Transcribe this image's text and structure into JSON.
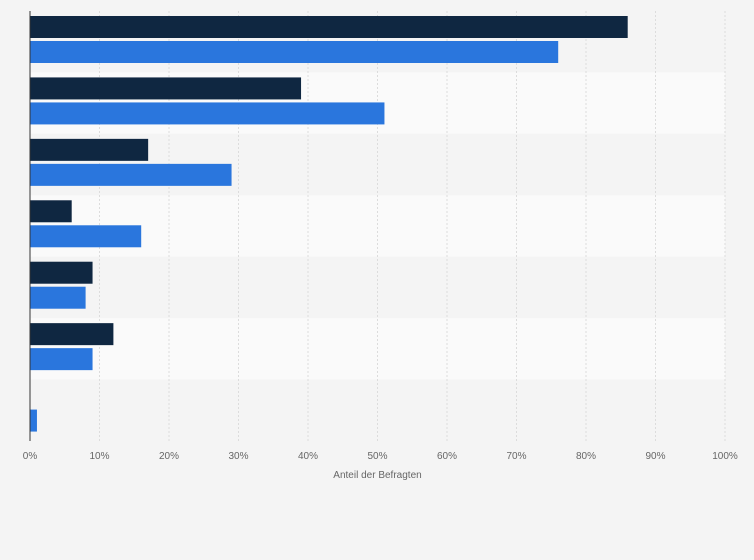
{
  "chart_data": {
    "type": "bar",
    "orientation": "horizontal",
    "xlabel": "Anteil der Befragten",
    "xlim": [
      0,
      100
    ],
    "xticks": [
      "0%",
      "10%",
      "20%",
      "30%",
      "40%",
      "50%",
      "60%",
      "70%",
      "80%",
      "90%",
      "100%"
    ],
    "grid": true,
    "legend": "none",
    "colors": [
      "#0f2741",
      "#2a76dd"
    ],
    "series": [
      {
        "values": [
          86,
          39,
          17,
          6,
          9,
          12,
          0
        ]
      },
      {
        "values": [
          76,
          51,
          29,
          16,
          8,
          9,
          1
        ]
      }
    ]
  }
}
